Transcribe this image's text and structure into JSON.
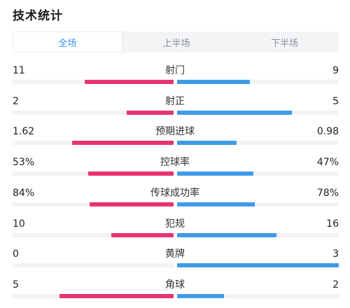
{
  "title": "技术统计",
  "tabs": [
    {
      "label": "全场",
      "active": true
    },
    {
      "label": "上半场",
      "active": false
    },
    {
      "label": "下半场",
      "active": false
    }
  ],
  "colors": {
    "home": "#e8336d",
    "away": "#3f9be8",
    "track": "#f1f2f4",
    "active_tab": "#3b8fe6"
  },
  "stats": [
    {
      "name": "射门",
      "home": "11",
      "away": "9",
      "home_ratio": 0.55,
      "away_ratio": 0.45
    },
    {
      "name": "射正",
      "home": "2",
      "away": "5",
      "home_ratio": 0.29,
      "away_ratio": 0.71
    },
    {
      "name": "预期进球",
      "home": "1.62",
      "away": "0.98",
      "home_ratio": 0.63,
      "away_ratio": 0.37
    },
    {
      "name": "控球率",
      "home": "53%",
      "away": "47%",
      "home_ratio": 0.53,
      "away_ratio": 0.47
    },
    {
      "name": "传球成功率",
      "home": "84%",
      "away": "78%",
      "home_ratio": 0.52,
      "away_ratio": 0.48
    },
    {
      "name": "犯规",
      "home": "10",
      "away": "16",
      "home_ratio": 0.385,
      "away_ratio": 0.615
    },
    {
      "name": "黄牌",
      "home": "0",
      "away": "3",
      "home_ratio": 0.0,
      "away_ratio": 1.0
    },
    {
      "name": "角球",
      "home": "5",
      "away": "2",
      "home_ratio": 0.71,
      "away_ratio": 0.29
    }
  ]
}
